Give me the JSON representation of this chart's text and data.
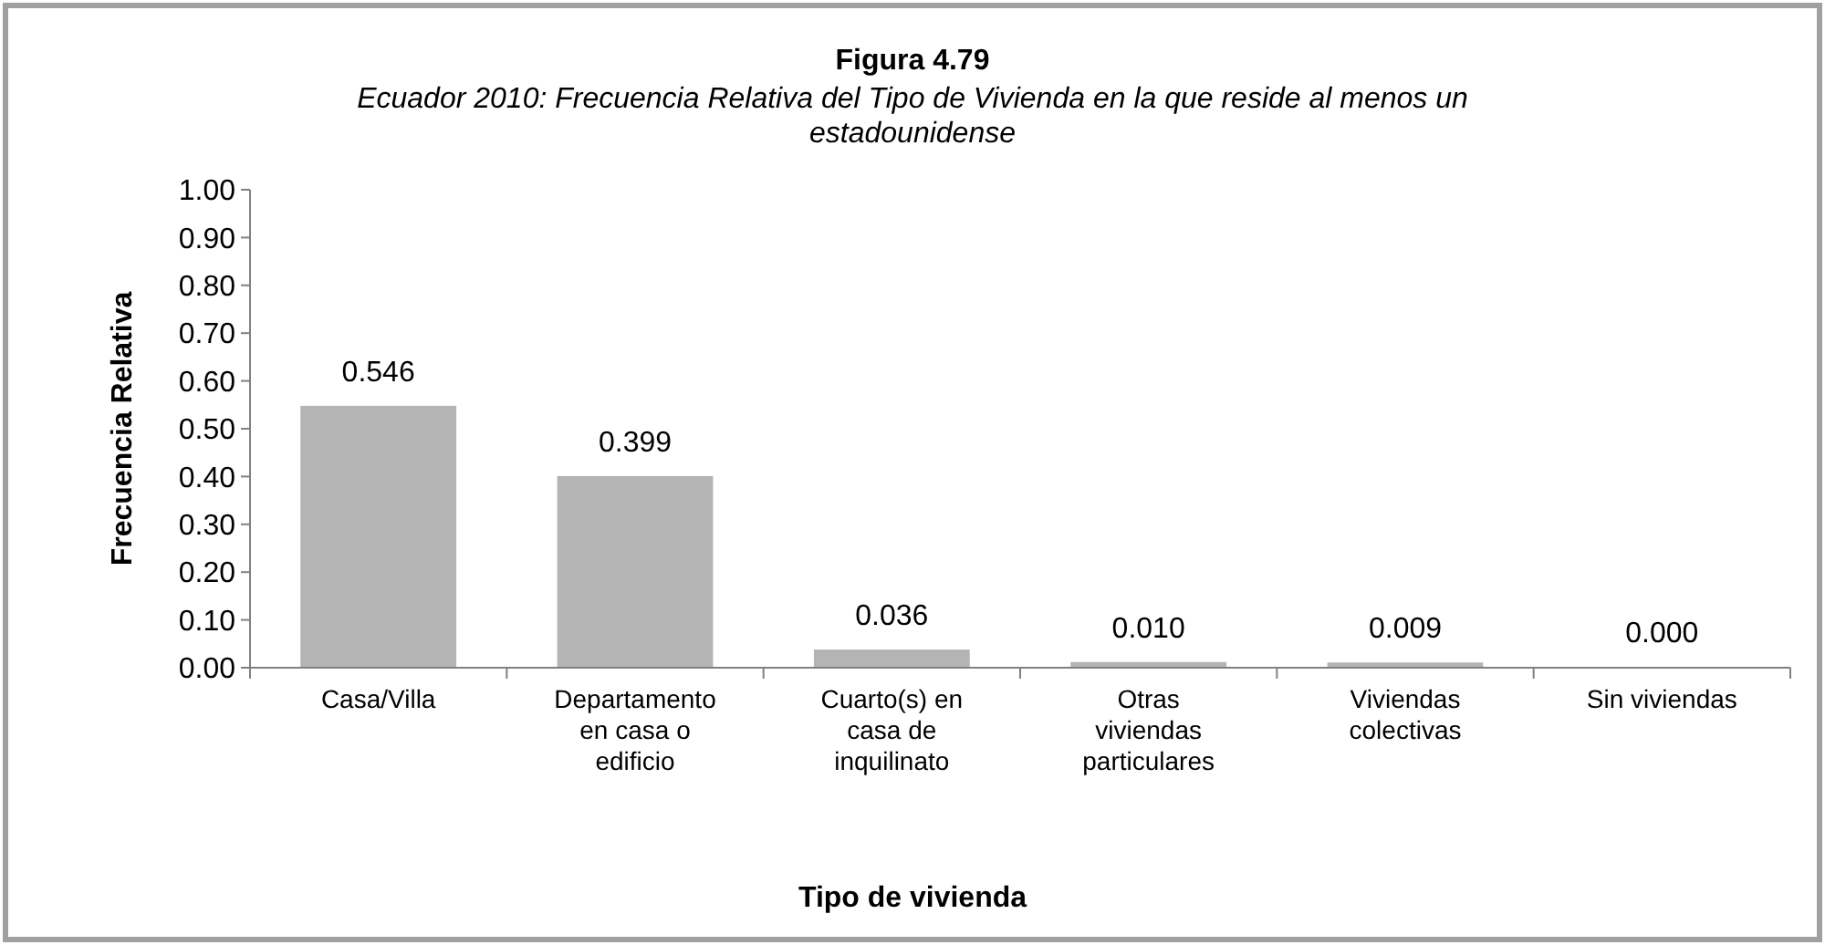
{
  "chart_data": {
    "type": "bar",
    "title": "Figura 4.79",
    "subtitle": "Ecuador 2010: Frecuencia Relativa del Tipo de Vivienda en la que reside al menos un estadounidense",
    "xlabel": "Tipo de vivienda",
    "ylabel": "Frecuencia Relativa",
    "categories": [
      "Casa/Villa",
      "Departamento en casa o edificio",
      "Cuarto(s) en casa de inquilinato",
      "Otras viviendas particulares",
      "Viviendas colectivas",
      "Sin viviendas"
    ],
    "values": [
      0.546,
      0.399,
      0.036,
      0.01,
      0.009,
      0.0
    ],
    "value_labels": [
      "0.546",
      "0.399",
      "0.036",
      "0.010",
      "0.009",
      "0.000"
    ],
    "color": "#b4b4b4",
    "ylim": [
      0,
      1
    ],
    "yticks": [
      {
        "value": 0,
        "label": "0.00"
      },
      {
        "value": 0.1,
        "label": "0.10"
      },
      {
        "value": 0.2,
        "label": "0.20"
      },
      {
        "value": 0.3,
        "label": "0.30"
      },
      {
        "value": 0.4,
        "label": "0.40"
      },
      {
        "value": 0.5,
        "label": "0.50"
      },
      {
        "value": 0.6,
        "label": "0.60"
      },
      {
        "value": 0.7,
        "label": "0.70"
      },
      {
        "value": 0.8,
        "label": "0.80"
      },
      {
        "value": 0.9,
        "label": "0.90"
      },
      {
        "value": 1,
        "label": "1.00"
      }
    ],
    "grid": false
  }
}
